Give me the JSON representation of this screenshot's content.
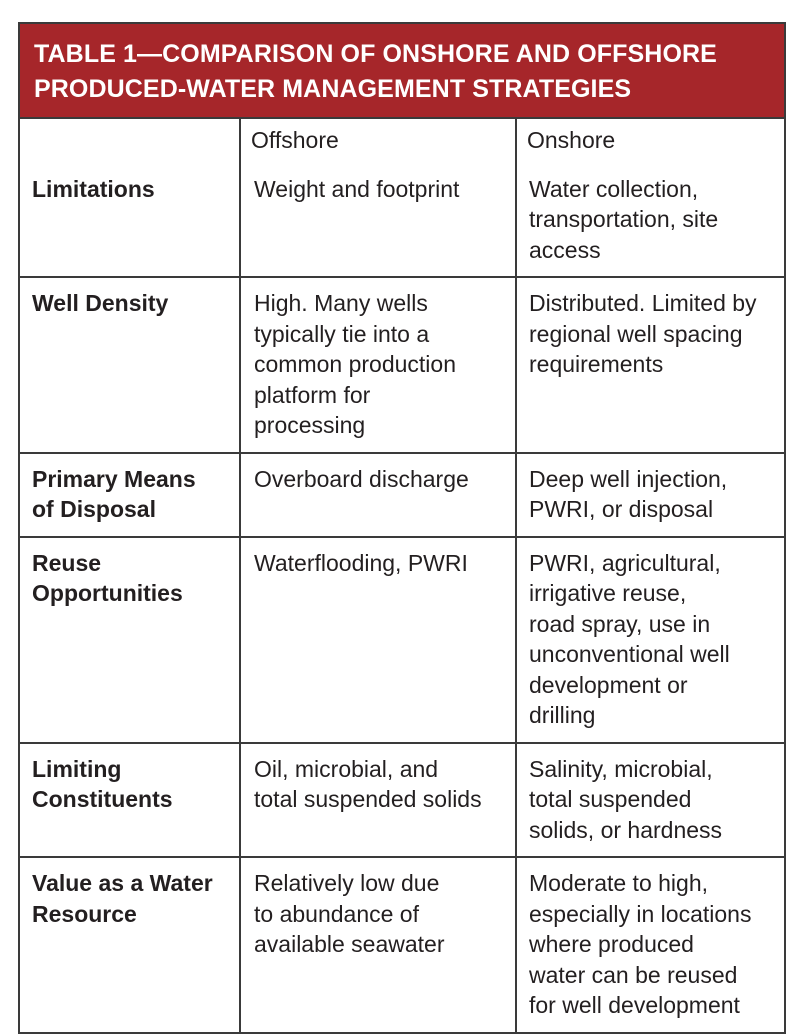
{
  "title": {
    "line1": "TABLE 1—COMPARISON OF ONSHORE AND OFFSHORE",
    "line2": "PRODUCED-WATER MANAGEMENT STRATEGIES"
  },
  "colors": {
    "title_background": "#a6262a",
    "title_text": "#ffffff",
    "border": "#3a3a3a",
    "body_text": "#231f20"
  },
  "columns": [
    "",
    "Offshore",
    "Onshore"
  ],
  "rows": [
    {
      "label": [
        "Limitations"
      ],
      "offshore": [
        "Weight and footprint"
      ],
      "onshore": [
        "Water collection,",
        "transportation, site",
        "access"
      ]
    },
    {
      "label": [
        "Well Density"
      ],
      "offshore": [
        "High. Many wells",
        "typically tie into a",
        "common production",
        "platform for",
        "processing"
      ],
      "onshore": [
        "Distributed. Limited by",
        "regional well spacing",
        "requirements"
      ]
    },
    {
      "label": [
        "Primary Means",
        "of Disposal"
      ],
      "offshore": [
        "Overboard discharge"
      ],
      "onshore": [
        "Deep well injection,",
        "PWRI, or disposal"
      ]
    },
    {
      "label": [
        "Reuse",
        "Opportunities"
      ],
      "offshore": [
        "Waterflooding, PWRI"
      ],
      "onshore": [
        "PWRI, agricultural,",
        "irrigative reuse,",
        "road spray, use in",
        "unconventional well",
        "development or",
        "drilling"
      ]
    },
    {
      "label": [
        "Limiting",
        "Constituents"
      ],
      "offshore": [
        "Oil, microbial, and",
        "total suspended solids"
      ],
      "onshore": [
        "Salinity, microbial,",
        "total suspended",
        "solids, or hardness"
      ]
    },
    {
      "label": [
        "Value as a Water",
        "Resource"
      ],
      "offshore": [
        "Relatively low due",
        "to abundance of",
        "available seawater"
      ],
      "onshore": [
        "Moderate to high,",
        "especially in locations",
        "where produced",
        "water can be reused",
        "for well development"
      ]
    }
  ]
}
